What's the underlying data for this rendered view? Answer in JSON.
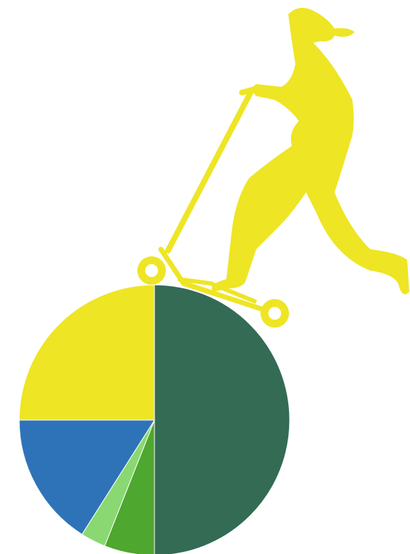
{
  "chart_data": {
    "type": "pie",
    "values": [
      50,
      6,
      3,
      16,
      25
    ],
    "colors": [
      "#336b55",
      "#4ea72e",
      "#8ad872",
      "#2e73b8",
      "#eee524"
    ]
  }
}
